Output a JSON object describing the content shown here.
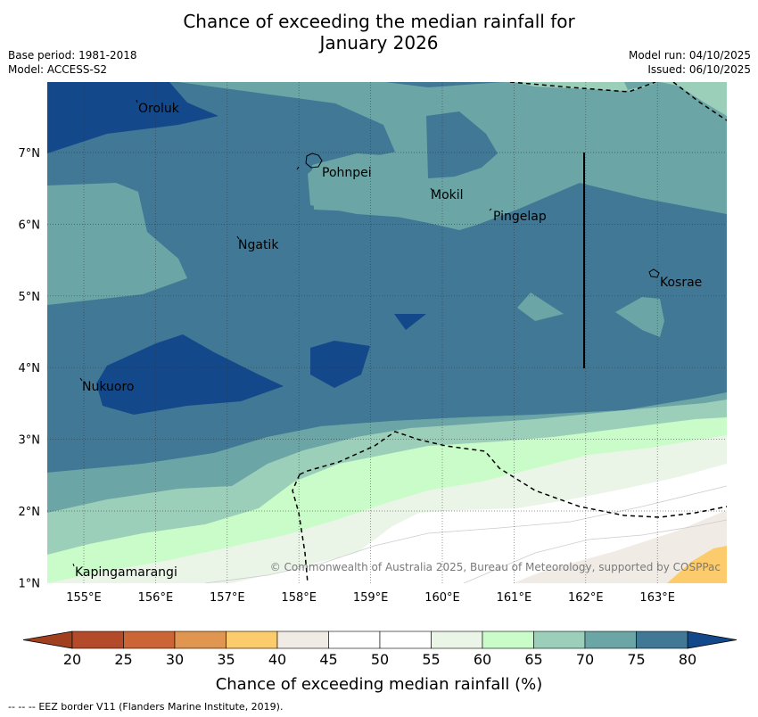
{
  "title": {
    "line1": "Chance of exceeding the median rainfall for",
    "line2": "January 2026"
  },
  "meta": {
    "base_period": "Base period: 1981-2018",
    "model": "Model: ACCESS-S2",
    "model_run": "Model run: 04/10/2025",
    "issued": "Issued: 06/10/2025"
  },
  "map": {
    "lon_labels": [
      "155°E",
      "156°E",
      "157°E",
      "158°E",
      "159°E",
      "160°E",
      "161°E",
      "162°E",
      "163°E"
    ],
    "lat_labels": [
      "7°N",
      "6°N",
      "5°N",
      "4°N",
      "3°N",
      "2°N",
      "1°N"
    ],
    "places": [
      "Oroluk",
      "Pohnpei",
      "Mokil",
      "Pingelap",
      "Ngatik",
      "Kosrae",
      "Nukuoro",
      "Kapingamarangi"
    ],
    "copyright": "© Commonwealth of Australia 2025, Bureau of Meteorology, supported by COSPPac"
  },
  "colorbar": {
    "ticks": [
      "20",
      "25",
      "30",
      "35",
      "40",
      "45",
      "50",
      "55",
      "60",
      "65",
      "70",
      "75",
      "80"
    ],
    "colors": [
      "#b34a29",
      "#cb6535",
      "#e09650",
      "#fccc6c",
      "#f0ebe5",
      "#ffffff",
      "#ffffff",
      "#eaf5e8",
      "#c9fcc8",
      "#9ccfba",
      "#6ca5a5",
      "#407896"
    ],
    "under_color": "#a0401f",
    "over_color": "#13498a",
    "label": "Chance of exceeding median rainfall (%)"
  },
  "footer": {
    "legend_dashes": "-- -- --",
    "legend_text": "EEZ border V11 (Flanders Marine Institute, 2019)."
  }
}
